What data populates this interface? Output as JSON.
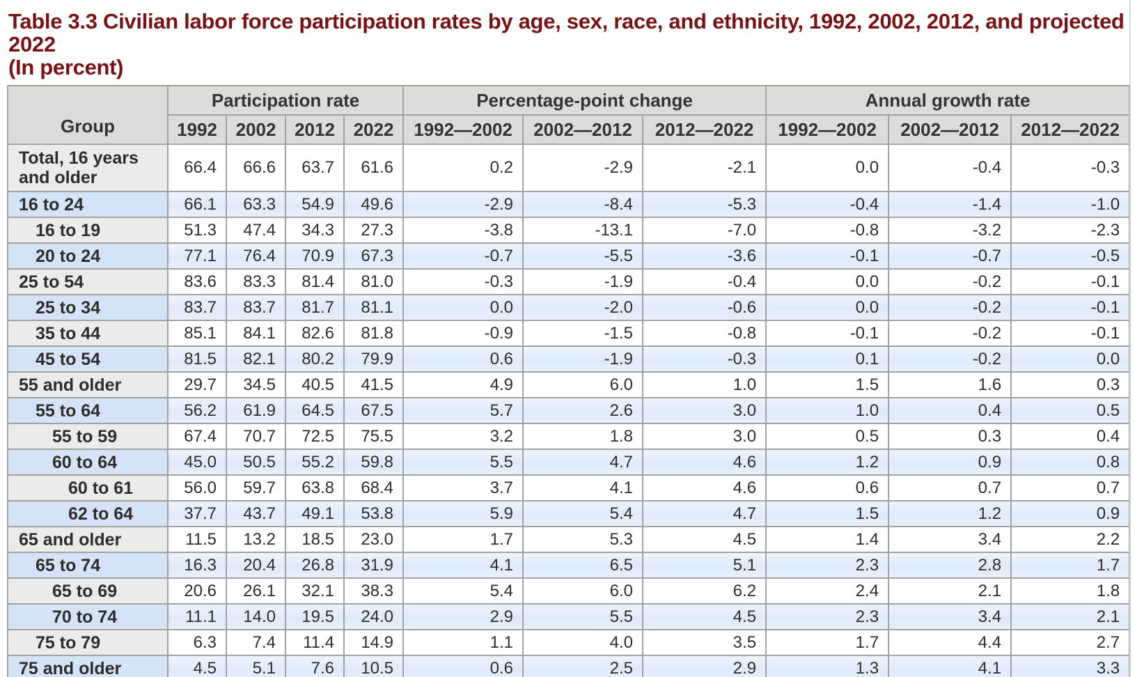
{
  "title": {
    "line1": "Table 3.3 Civilian labor force participation rates by age, sex, race, and ethnicity, 1992, 2002, 2012, and projected 2022",
    "line2": "(In percent)"
  },
  "colors": {
    "title_color": "#7a1114",
    "header_bg": "#dcdcdb",
    "header_text": "#333333",
    "body_text": "#2d2d2d",
    "blue_row": "#dfeafa",
    "blue_row_light": "#eef4fc",
    "blue_group": "#d4e4f6",
    "gray_group": "#ebebe9",
    "cell_border": "#a2a2a2",
    "frame_border": "#8f8f8f",
    "white": "#ffffff"
  },
  "table": {
    "group_header": "Group",
    "col_groups": [
      {
        "label": "Participation rate",
        "span": 4
      },
      {
        "label": "Percentage-point change",
        "span": 3
      },
      {
        "label": "Annual growth rate",
        "span": 3
      }
    ],
    "sub_headers": [
      "1992",
      "2002",
      "2012",
      "2022",
      "1992—2002",
      "2002—2012",
      "2012—2022",
      "1992—2002",
      "2002—2012",
      "2012—2022"
    ],
    "rows": [
      {
        "group": "Total, 16 years and older",
        "indent": 0,
        "shade": "gray",
        "values": [
          "66.4",
          "66.6",
          "63.7",
          "61.6",
          "0.2",
          "-2.9",
          "-2.1",
          "0.0",
          "-0.4",
          "-0.3"
        ]
      },
      {
        "group": "16 to 24",
        "indent": 0,
        "shade": "blue",
        "values": [
          "66.1",
          "63.3",
          "54.9",
          "49.6",
          "-2.9",
          "-8.4",
          "-5.3",
          "-0.4",
          "-1.4",
          "-1.0"
        ]
      },
      {
        "group": "16 to 19",
        "indent": 1,
        "shade": "gray",
        "values": [
          "51.3",
          "47.4",
          "34.3",
          "27.3",
          "-3.8",
          "-13.1",
          "-7.0",
          "-0.8",
          "-3.2",
          "-2.3"
        ]
      },
      {
        "group": "20 to 24",
        "indent": 1,
        "shade": "blue",
        "values": [
          "77.1",
          "76.4",
          "70.9",
          "67.3",
          "-0.7",
          "-5.5",
          "-3.6",
          "-0.1",
          "-0.7",
          "-0.5"
        ]
      },
      {
        "group": "25 to 54",
        "indent": 0,
        "shade": "gray",
        "values": [
          "83.6",
          "83.3",
          "81.4",
          "81.0",
          "-0.3",
          "-1.9",
          "-0.4",
          "0.0",
          "-0.2",
          "-0.1"
        ]
      },
      {
        "group": "25 to 34",
        "indent": 1,
        "shade": "blue",
        "values": [
          "83.7",
          "83.7",
          "81.7",
          "81.1",
          "0.0",
          "-2.0",
          "-0.6",
          "0.0",
          "-0.2",
          "-0.1"
        ]
      },
      {
        "group": "35 to 44",
        "indent": 1,
        "shade": "gray",
        "values": [
          "85.1",
          "84.1",
          "82.6",
          "81.8",
          "-0.9",
          "-1.5",
          "-0.8",
          "-0.1",
          "-0.2",
          "-0.1"
        ]
      },
      {
        "group": "45 to 54",
        "indent": 1,
        "shade": "blue",
        "values": [
          "81.5",
          "82.1",
          "80.2",
          "79.9",
          "0.6",
          "-1.9",
          "-0.3",
          "0.1",
          "-0.2",
          "0.0"
        ]
      },
      {
        "group": "55 and older",
        "indent": 0,
        "shade": "gray",
        "values": [
          "29.7",
          "34.5",
          "40.5",
          "41.5",
          "4.9",
          "6.0",
          "1.0",
          "1.5",
          "1.6",
          "0.3"
        ]
      },
      {
        "group": "55 to 64",
        "indent": 1,
        "shade": "blue",
        "values": [
          "56.2",
          "61.9",
          "64.5",
          "67.5",
          "5.7",
          "2.6",
          "3.0",
          "1.0",
          "0.4",
          "0.5"
        ]
      },
      {
        "group": "55 to 59",
        "indent": 2,
        "shade": "gray",
        "values": [
          "67.4",
          "70.7",
          "72.5",
          "75.5",
          "3.2",
          "1.8",
          "3.0",
          "0.5",
          "0.3",
          "0.4"
        ]
      },
      {
        "group": "60 to 64",
        "indent": 2,
        "shade": "blue",
        "values": [
          "45.0",
          "50.5",
          "55.2",
          "59.8",
          "5.5",
          "4.7",
          "4.6",
          "1.2",
          "0.9",
          "0.8"
        ]
      },
      {
        "group": "60 to 61",
        "indent": 3,
        "shade": "gray",
        "values": [
          "56.0",
          "59.7",
          "63.8",
          "68.4",
          "3.7",
          "4.1",
          "4.6",
          "0.6",
          "0.7",
          "0.7"
        ]
      },
      {
        "group": "62 to 64",
        "indent": 3,
        "shade": "blue",
        "values": [
          "37.7",
          "43.7",
          "49.1",
          "53.8",
          "5.9",
          "5.4",
          "4.7",
          "1.5",
          "1.2",
          "0.9"
        ]
      },
      {
        "group": "65 and older",
        "indent": 0,
        "shade": "gray",
        "values": [
          "11.5",
          "13.2",
          "18.5",
          "23.0",
          "1.7",
          "5.3",
          "4.5",
          "1.4",
          "3.4",
          "2.2"
        ]
      },
      {
        "group": "65 to 74",
        "indent": 1,
        "shade": "blue",
        "values": [
          "16.3",
          "20.4",
          "26.8",
          "31.9",
          "4.1",
          "6.5",
          "5.1",
          "2.3",
          "2.8",
          "1.7"
        ]
      },
      {
        "group": "65 to 69",
        "indent": 2,
        "shade": "gray",
        "values": [
          "20.6",
          "26.1",
          "32.1",
          "38.3",
          "5.4",
          "6.0",
          "6.2",
          "2.4",
          "2.1",
          "1.8"
        ]
      },
      {
        "group": "70 to 74",
        "indent": 2,
        "shade": "blue",
        "values": [
          "11.1",
          "14.0",
          "19.5",
          "24.0",
          "2.9",
          "5.5",
          "4.5",
          "2.3",
          "3.4",
          "2.1"
        ]
      },
      {
        "group": "75 to 79",
        "indent": 1,
        "shade": "gray",
        "values": [
          "6.3",
          "7.4",
          "11.4",
          "14.9",
          "1.1",
          "4.0",
          "3.5",
          "1.7",
          "4.4",
          "2.7"
        ]
      },
      {
        "group": "75 and older",
        "indent": 0,
        "shade": "blue",
        "values": [
          "4.5",
          "5.1",
          "7.6",
          "10.5",
          "0.6",
          "2.5",
          "2.9",
          "1.3",
          "4.1",
          "3.3"
        ]
      }
    ]
  }
}
